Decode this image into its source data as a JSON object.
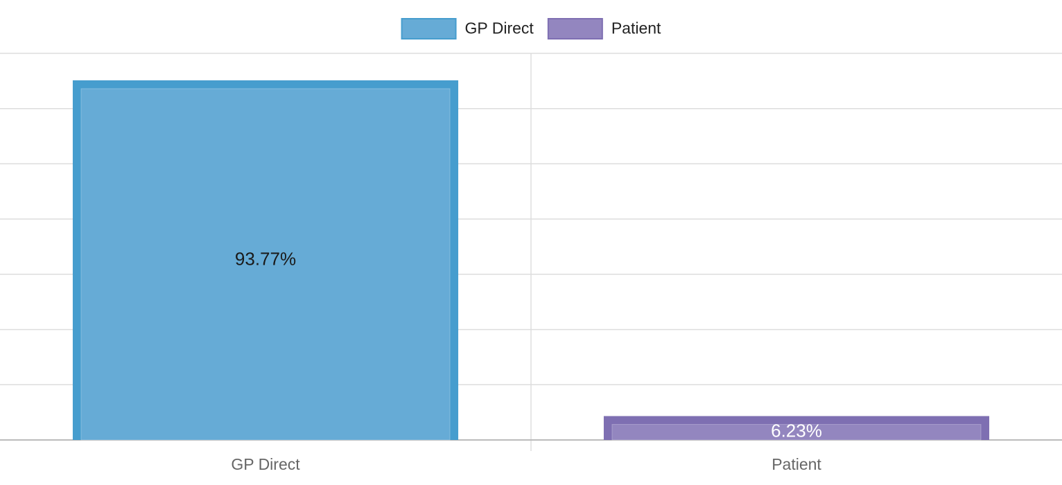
{
  "chart_data": {
    "type": "bar",
    "categories": [
      "GP Direct",
      "Patient"
    ],
    "series": [
      {
        "name": "GP Direct",
        "values": [
          93.77,
          null
        ]
      },
      {
        "name": "Patient",
        "values": [
          null,
          6.23
        ]
      }
    ],
    "data_labels": [
      "93.77%",
      "6.23%"
    ],
    "ylim": [
      0,
      100
    ],
    "grid": true,
    "legend": "top-center",
    "colors": {
      "GP Direct": {
        "fill": "#66abd6",
        "border": "#469dce",
        "label": "#1a1a1a"
      },
      "Patient": {
        "fill": "#9386bf",
        "border": "#7e6fb2",
        "label": "#ffffff"
      }
    },
    "grid_color": "#dddddd",
    "axis_color": "#bbbbbb"
  }
}
